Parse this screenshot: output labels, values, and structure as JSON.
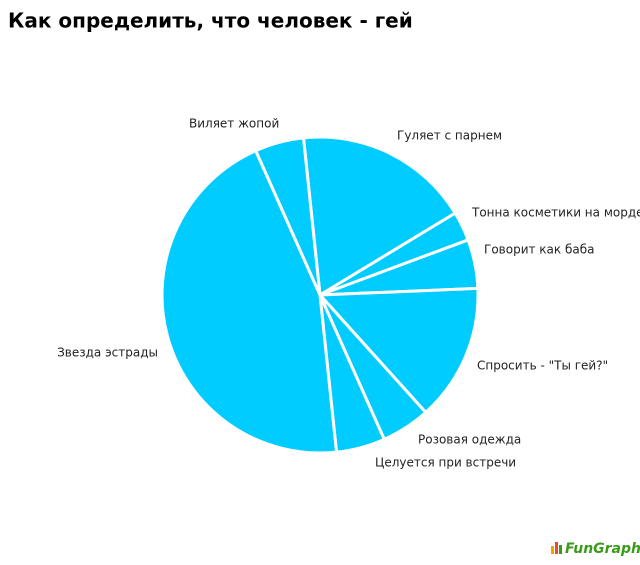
{
  "chart_data": {
    "type": "pie",
    "title": "Как определить, что человек - гей",
    "categories": [
      "Гуляет с парнем",
      "Тонна косметики на морде",
      "Говорит как баба",
      "Спросить - \"Ты гей?\"",
      "Розовая одежда",
      "Целуется при встречи",
      "Звезда эстрады",
      "Виляет жопой"
    ],
    "values": [
      18,
      3,
      5,
      14,
      5,
      5,
      45,
      5
    ],
    "color": "#00ccff",
    "watermark": "FunGraph"
  }
}
